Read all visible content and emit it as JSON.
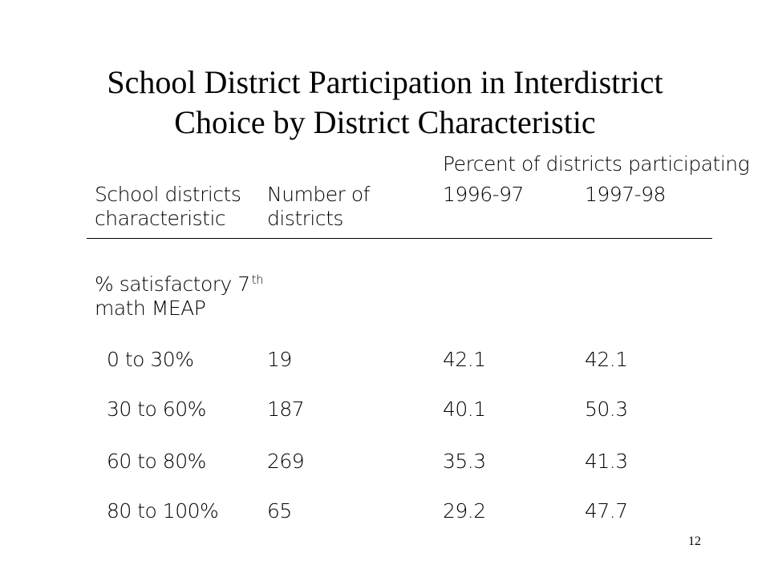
{
  "title": {
    "line1": "School District Participation in Interdistrict",
    "line2": "Choice by District Characteristic"
  },
  "table": {
    "group_header": "Percent of districts participating",
    "columns": {
      "characteristic_line1": "School districts",
      "characteristic_line2": "characteristic",
      "number_line1": "Number of",
      "number_line2": "districts",
      "year1": "1996-97",
      "year2": "1997-98"
    },
    "section": {
      "line1_prefix": "% satisfactory 7",
      "line1_sup": "th",
      "line2": "math MEAP"
    },
    "rows": [
      {
        "range": "0 to 30%",
        "count": "19",
        "y1996": "42.1",
        "y1997": "42.1"
      },
      {
        "range": "30 to 60%",
        "count": "187",
        "y1996": "40.1",
        "y1997": "50.3"
      },
      {
        "range": "60 to 80%",
        "count": "269",
        "y1996": "35.3",
        "y1997": "41.3"
      },
      {
        "range": "80 to 100%",
        "count": "65",
        "y1996": "29.2",
        "y1997": "47.7"
      }
    ]
  },
  "page_number": "12"
}
